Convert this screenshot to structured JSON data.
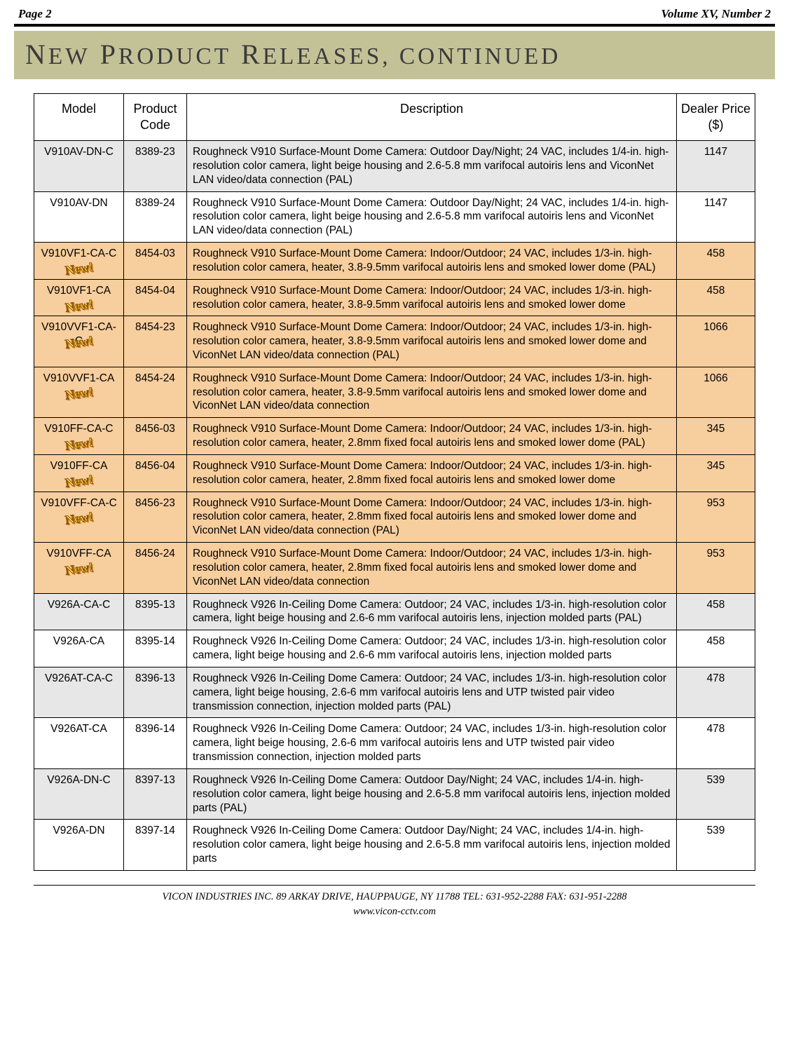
{
  "header": {
    "page_label": "Page 2",
    "volume_label": "Volume XV, Number 2"
  },
  "banner": {
    "title_html": "N<small>EW</small> P<small>RODUCT</small> R<small>ELEASES, CONTINUED</small>"
  },
  "table": {
    "columns": {
      "model": "Model",
      "code": "Product Code",
      "desc": "Description",
      "price": "Dealer Price ($)"
    },
    "rows": [
      {
        "model": "V910AV-DN-C",
        "code": "8389-23",
        "price": "1147",
        "new": false,
        "shade": "grey",
        "desc": "Roughneck V910 Surface-Mount Dome Camera: Outdoor Day/Night; 24 VAC, includes 1/4-in. high-resolution color camera, light beige housing and 2.6-5.8 mm varifocal autoiris lens and ViconNet LAN video/data connection (PAL)"
      },
      {
        "model": "V910AV-DN",
        "code": "8389-24",
        "price": "1147",
        "new": false,
        "shade": "none",
        "desc": "Roughneck V910 Surface-Mount Dome Camera: Outdoor Day/Night; 24 VAC, includes 1/4-in. high-resolution color camera, light beige housing and 2.6-5.8 mm varifocal autoiris lens and ViconNet LAN video/data connection (PAL)"
      },
      {
        "model": "V910VF1-CA-C",
        "code": "8454-03",
        "price": "458",
        "new": true,
        "shade": "beige",
        "desc": "Roughneck V910 Surface-Mount Dome Camera: Indoor/Outdoor; 24 VAC, includes 1/3-in. high-resolution color camera, heater, 3.8-9.5mm varifocal autoiris lens and smoked lower dome (PAL)"
      },
      {
        "model": "V910VF1-CA",
        "code": "8454-04",
        "price": "458",
        "new": true,
        "shade": "beige",
        "desc": "Roughneck V910 Surface-Mount Dome Camera: Indoor/Outdoor; 24 VAC, includes 1/3-in. high-resolution color camera, heater, 3.8-9.5mm varifocal autoiris lens and smoked lower dome"
      },
      {
        "model": "V910VVF1-CA-C",
        "code": "8454-23",
        "price": "1066",
        "new": true,
        "shade": "beige",
        "desc": "Roughneck V910 Surface-Mount Dome Camera: Indoor/Outdoor; 24 VAC, includes 1/3-in. high-resolution color camera, heater, 3.8-9.5mm varifocal autoiris lens and smoked lower dome and ViconNet LAN video/data connection (PAL)"
      },
      {
        "model": "V910VVF1-CA",
        "code": "8454-24",
        "price": "1066",
        "new": true,
        "shade": "beige",
        "desc": "Roughneck V910 Surface-Mount Dome Camera: Indoor/Outdoor; 24 VAC, includes 1/3-in. high-resolution color camera, heater, 3.8-9.5mm varifocal autoiris lens and smoked lower dome and ViconNet LAN video/data connection"
      },
      {
        "model": "V910FF-CA-C",
        "code": "8456-03",
        "price": "345",
        "new": true,
        "shade": "beige",
        "desc": "Roughneck V910 Surface-Mount Dome Camera: Indoor/Outdoor; 24 VAC, includes 1/3-in. high-resolution color camera, heater, 2.8mm fixed focal autoiris lens and smoked lower dome (PAL)"
      },
      {
        "model": "V910FF-CA",
        "code": "8456-04",
        "price": "345",
        "new": true,
        "shade": "beige",
        "desc": "Roughneck V910 Surface-Mount Dome Camera: Indoor/Outdoor; 24 VAC, includes 1/3-in. high-resolution color camera, heater, 2.8mm fixed focal autoiris lens and smoked lower dome"
      },
      {
        "model": "V910VFF-CA-C",
        "code": "8456-23",
        "price": "953",
        "new": true,
        "shade": "beige",
        "desc": "Roughneck V910 Surface-Mount Dome Camera: Indoor/Outdoor; 24 VAC, includes 1/3-in. high-resolution color camera, heater, 2.8mm fixed focal autoiris lens and smoked lower dome and ViconNet LAN video/data connection (PAL)"
      },
      {
        "model": "V910VFF-CA",
        "code": "8456-24",
        "price": "953",
        "new": true,
        "shade": "beige",
        "desc": "Roughneck V910 Surface-Mount Dome Camera: Indoor/Outdoor; 24 VAC, includes 1/3-in. high-resolution color camera, heater, 2.8mm fixed focal autoiris lens and smoked lower dome and ViconNet LAN video/data connection"
      },
      {
        "model": "V926A-CA-C",
        "code": "8395-13",
        "price": "458",
        "new": false,
        "shade": "grey",
        "desc": "Roughneck V926 In-Ceiling Dome Camera: Outdoor; 24 VAC, includes 1/3-in. high-resolution color camera, light beige housing and 2.6-6 mm varifocal autoiris lens, injection molded parts (PAL)"
      },
      {
        "model": "V926A-CA",
        "code": "8395-14",
        "price": "458",
        "new": false,
        "shade": "none",
        "desc": "Roughneck V926 In-Ceiling Dome Camera: Outdoor; 24 VAC, includes 1/3-in. high-resolution color camera, light beige housing and 2.6-6 mm varifocal autoiris lens, injection molded parts"
      },
      {
        "model": "V926AT-CA-C",
        "code": "8396-13",
        "price": "478",
        "new": false,
        "shade": "grey",
        "desc": "Roughneck V926 In-Ceiling Dome Camera: Outdoor; 24 VAC, includes 1/3-in. high-resolution color camera, light beige housing, 2.6-6 mm varifocal autoiris lens and UTP twisted pair video transmission connection, injection molded parts (PAL)"
      },
      {
        "model": "V926AT-CA",
        "code": "8396-14",
        "price": "478",
        "new": false,
        "shade": "none",
        "desc": "Roughneck V926 In-Ceiling Dome Camera: Outdoor; 24 VAC, includes 1/3-in. high-resolution color camera, light beige housing, 2.6-6 mm varifocal autoiris lens and UTP twisted pair video transmission connection, injection molded parts"
      },
      {
        "model": "V926A-DN-C",
        "code": "8397-13",
        "price": "539",
        "new": false,
        "shade": "grey",
        "desc": "Roughneck V926 In-Ceiling Dome Camera: Outdoor Day/Night; 24 VAC, includes 1/4-in. high-resolution color camera, light beige housing and 2.6-5.8 mm varifocal autoiris lens, injection molded parts (PAL)"
      },
      {
        "model": "V926A-DN",
        "code": "8397-14",
        "price": "539",
        "new": false,
        "shade": "none",
        "desc": "Roughneck V926 In-Ceiling Dome Camera: Outdoor Day/Night; 24 VAC, includes 1/4-in. high-resolution color camera, light beige housing and 2.6-5.8 mm varifocal autoiris lens, injection molded parts"
      }
    ]
  },
  "footer": {
    "line1": "VICON INDUSTRIES INC. 89 ARKAY DRIVE, HAUPPAUGE, NY 11788 TEL: 631-952-2288 FAX: 631-951-2288",
    "line2": "www.vicon-cctv.com"
  },
  "styles": {
    "banner_bg": "#c3c297",
    "shade_grey": "#e7e7e7",
    "shade_beige": "#f7ce9e",
    "badge_text": "New!"
  }
}
